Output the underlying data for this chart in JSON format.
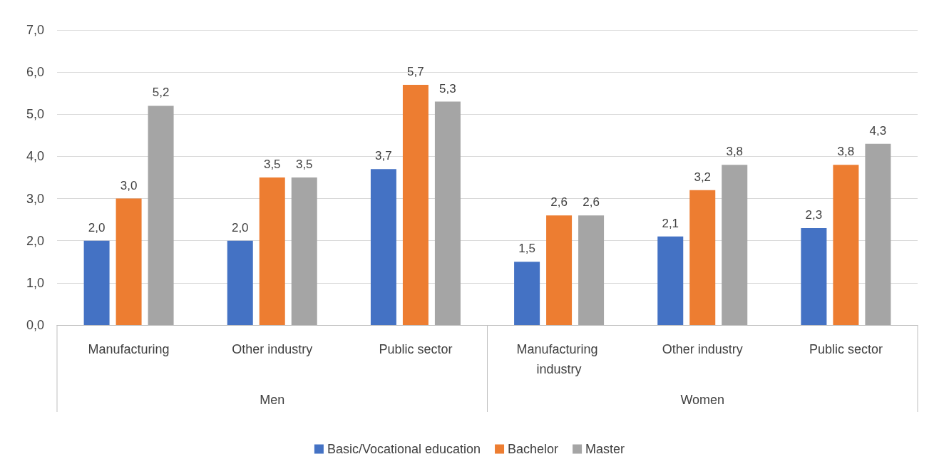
{
  "chart_data": {
    "type": "bar",
    "categories": [
      "Manufacturing",
      "Other industry",
      "Public sector",
      "Manufacturing industry",
      "Other industry",
      "Public sector"
    ],
    "series": [
      {
        "name": "Basic/Vocational education",
        "color": "#4472c4",
        "values": [
          2.0,
          2.0,
          3.7,
          1.5,
          2.1,
          2.3
        ],
        "value_labels": [
          "2,0",
          "2,0",
          "3,7",
          "1,5",
          "2,1",
          "2,3"
        ]
      },
      {
        "name": "Bachelor",
        "color": "#ed7d31",
        "values": [
          3.0,
          3.5,
          5.7,
          2.6,
          3.2,
          3.8
        ],
        "value_labels": [
          "3,0",
          "3,5",
          "5,7",
          "2,6",
          "3,2",
          "3,8"
        ]
      },
      {
        "name": "Master",
        "color": "#a5a5a5",
        "values": [
          5.2,
          3.5,
          5.3,
          2.6,
          3.8,
          4.3
        ],
        "value_labels": [
          "5,2",
          "3,5",
          "5,3",
          "2,6",
          "3,8",
          "4,3"
        ]
      }
    ],
    "annotations": [
      "Men",
      "Women"
    ],
    "ylim": [
      0,
      7
    ],
    "yticks": [
      {
        "value": 0,
        "label": "0,0"
      },
      {
        "value": 1,
        "label": "1,0"
      },
      {
        "value": 2,
        "label": "2,0"
      },
      {
        "value": 3,
        "label": "3,0"
      },
      {
        "value": 4,
        "label": "4,0"
      },
      {
        "value": 5,
        "label": "5,0"
      },
      {
        "value": 6,
        "label": "6,0"
      },
      {
        "value": 7,
        "label": "7,0"
      }
    ],
    "grid": "y",
    "legend": "bottom"
  }
}
